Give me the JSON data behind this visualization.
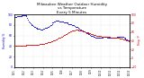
{
  "title": "Milwaukee Weather Outdoor Humidity\nvs Temperature\nEvery 5 Minutes",
  "title_fontsize": 3.0,
  "background_color": "#ffffff",
  "left_color": "#0000dd",
  "right_color": "#dd0000",
  "left_ylim": [
    0,
    100
  ],
  "right_ylim": [
    -20,
    100
  ],
  "left_yticks": [
    0,
    20,
    40,
    60,
    80,
    100
  ],
  "right_yticks": [
    -20,
    0,
    20,
    40,
    60,
    80,
    100
  ],
  "grid_color": "#cccccc",
  "dot_size": 0.4,
  "humidity_x": [
    0,
    2,
    4,
    6,
    8,
    10,
    12,
    14,
    16,
    18,
    20,
    22,
    24,
    26,
    28,
    30,
    32,
    34,
    36,
    38,
    40,
    42,
    44,
    46,
    48,
    50,
    52,
    54,
    56,
    58,
    60,
    62,
    64,
    66,
    68,
    70,
    72,
    74,
    76,
    78,
    80,
    82,
    84,
    86,
    88,
    90,
    92,
    94,
    96,
    98,
    100,
    102,
    104,
    106,
    108,
    110,
    112,
    114,
    116,
    118,
    120,
    122,
    124,
    126,
    128,
    130,
    132,
    134,
    136,
    138,
    140,
    142,
    144,
    146,
    148,
    150,
    152,
    154,
    156,
    158,
    160,
    162,
    164,
    166,
    168,
    170,
    172,
    174,
    176,
    178,
    180,
    182,
    184,
    186,
    188,
    190,
    192,
    194,
    196,
    198,
    200,
    202,
    204,
    206,
    208,
    210,
    212,
    214,
    216,
    218,
    220,
    222,
    224,
    226,
    228,
    230,
    232,
    234,
    236,
    238,
    240,
    242,
    244,
    246,
    248,
    250,
    252,
    254,
    256,
    258,
    260,
    262,
    264,
    266,
    268,
    270,
    272,
    274,
    276,
    278,
    280,
    282,
    284,
    286,
    288,
    290,
    292,
    294,
    296,
    298,
    300
  ],
  "humidity_y": [
    95,
    95,
    95,
    95,
    96,
    96,
    97,
    97,
    97,
    97,
    98,
    98,
    98,
    98,
    98,
    98,
    96,
    93,
    90,
    87,
    85,
    83,
    81,
    80,
    79,
    78,
    77,
    76,
    75,
    74,
    73,
    73,
    73,
    73,
    72,
    72,
    72,
    72,
    73,
    73,
    74,
    74,
    75,
    75,
    76,
    77,
    78,
    79,
    80,
    82,
    84,
    85,
    86,
    87,
    88,
    88,
    88,
    88,
    88,
    87,
    87,
    87,
    87,
    86,
    86,
    85,
    85,
    85,
    84,
    84,
    83,
    82,
    82,
    81,
    81,
    80,
    80,
    79,
    79,
    78,
    77,
    77,
    76,
    75,
    74,
    73,
    72,
    71,
    70,
    69,
    68,
    68,
    67,
    66,
    65,
    64,
    64,
    63,
    62,
    61,
    60,
    59,
    59,
    58,
    58,
    57,
    56,
    56,
    55,
    55,
    55,
    55,
    55,
    55,
    56,
    56,
    57,
    57,
    57,
    57,
    57,
    56,
    56,
    56,
    56,
    56,
    56,
    55,
    55,
    55,
    55,
    55,
    56,
    56,
    57,
    57,
    57,
    57,
    57,
    57,
    57,
    57,
    57,
    56,
    55,
    54,
    53,
    52,
    51,
    50,
    49
  ],
  "temp_x": [
    0,
    2,
    4,
    6,
    8,
    10,
    12,
    14,
    16,
    18,
    20,
    22,
    24,
    26,
    28,
    30,
    32,
    34,
    36,
    38,
    40,
    42,
    44,
    46,
    48,
    50,
    52,
    54,
    56,
    58,
    60,
    62,
    64,
    66,
    68,
    70,
    72,
    74,
    76,
    78,
    80,
    82,
    84,
    86,
    88,
    90,
    92,
    94,
    96,
    98,
    100,
    102,
    104,
    106,
    108,
    110,
    112,
    114,
    116,
    118,
    120,
    122,
    124,
    126,
    128,
    130,
    132,
    134,
    136,
    138,
    140,
    142,
    144,
    146,
    148,
    150,
    152,
    154,
    156,
    158,
    160,
    162,
    164,
    166,
    168,
    170,
    172,
    174,
    176,
    178,
    180,
    182,
    184,
    186,
    188,
    190,
    192,
    194,
    196,
    198,
    200,
    202,
    204,
    206,
    208,
    210,
    212,
    214,
    216,
    218,
    220,
    222,
    224,
    226,
    228,
    230,
    232,
    234,
    236,
    238,
    240,
    242,
    244,
    246,
    248,
    250,
    252,
    254,
    256,
    258,
    260,
    262,
    264,
    266,
    268,
    270,
    272,
    274,
    276,
    278,
    280,
    282,
    284,
    286,
    288,
    290,
    292,
    294,
    296,
    298,
    300
  ],
  "temp_y": [
    28,
    28,
    28,
    28,
    28,
    28,
    28,
    28,
    28,
    28,
    29,
    29,
    29,
    29,
    29,
    29,
    30,
    30,
    30,
    30,
    30,
    30,
    30,
    30,
    30,
    30,
    30,
    30,
    31,
    31,
    31,
    31,
    31,
    32,
    32,
    32,
    33,
    33,
    33,
    33,
    34,
    34,
    35,
    35,
    36,
    36,
    37,
    37,
    38,
    38,
    39,
    40,
    40,
    41,
    42,
    43,
    44,
    45,
    46,
    47,
    48,
    49,
    50,
    51,
    52,
    53,
    54,
    55,
    56,
    57,
    58,
    59,
    60,
    61,
    62,
    63,
    64,
    64,
    64,
    64,
    65,
    65,
    65,
    65,
    64,
    64,
    64,
    63,
    63,
    62,
    62,
    61,
    61,
    60,
    60,
    59,
    59,
    58,
    57,
    57,
    56,
    55,
    55,
    54,
    54,
    53,
    53,
    52,
    52,
    51,
    51,
    51,
    51,
    51,
    50,
    50,
    50,
    50,
    50,
    50,
    50,
    50,
    49,
    49,
    49,
    49,
    48,
    48,
    48,
    48,
    48,
    47,
    47,
    47,
    47,
    46,
    46,
    45,
    45,
    45,
    44,
    44,
    43,
    43,
    42,
    42,
    41,
    40,
    40,
    39,
    38
  ],
  "xtick_labels": [
    "11/1",
    "11/2",
    "11/3",
    "11/4",
    "11/5",
    "11/6",
    "11/7",
    "11/8",
    "11/9",
    "11/10",
    "11/11",
    "11/12",
    "11/13"
  ],
  "xtick_count": 13
}
